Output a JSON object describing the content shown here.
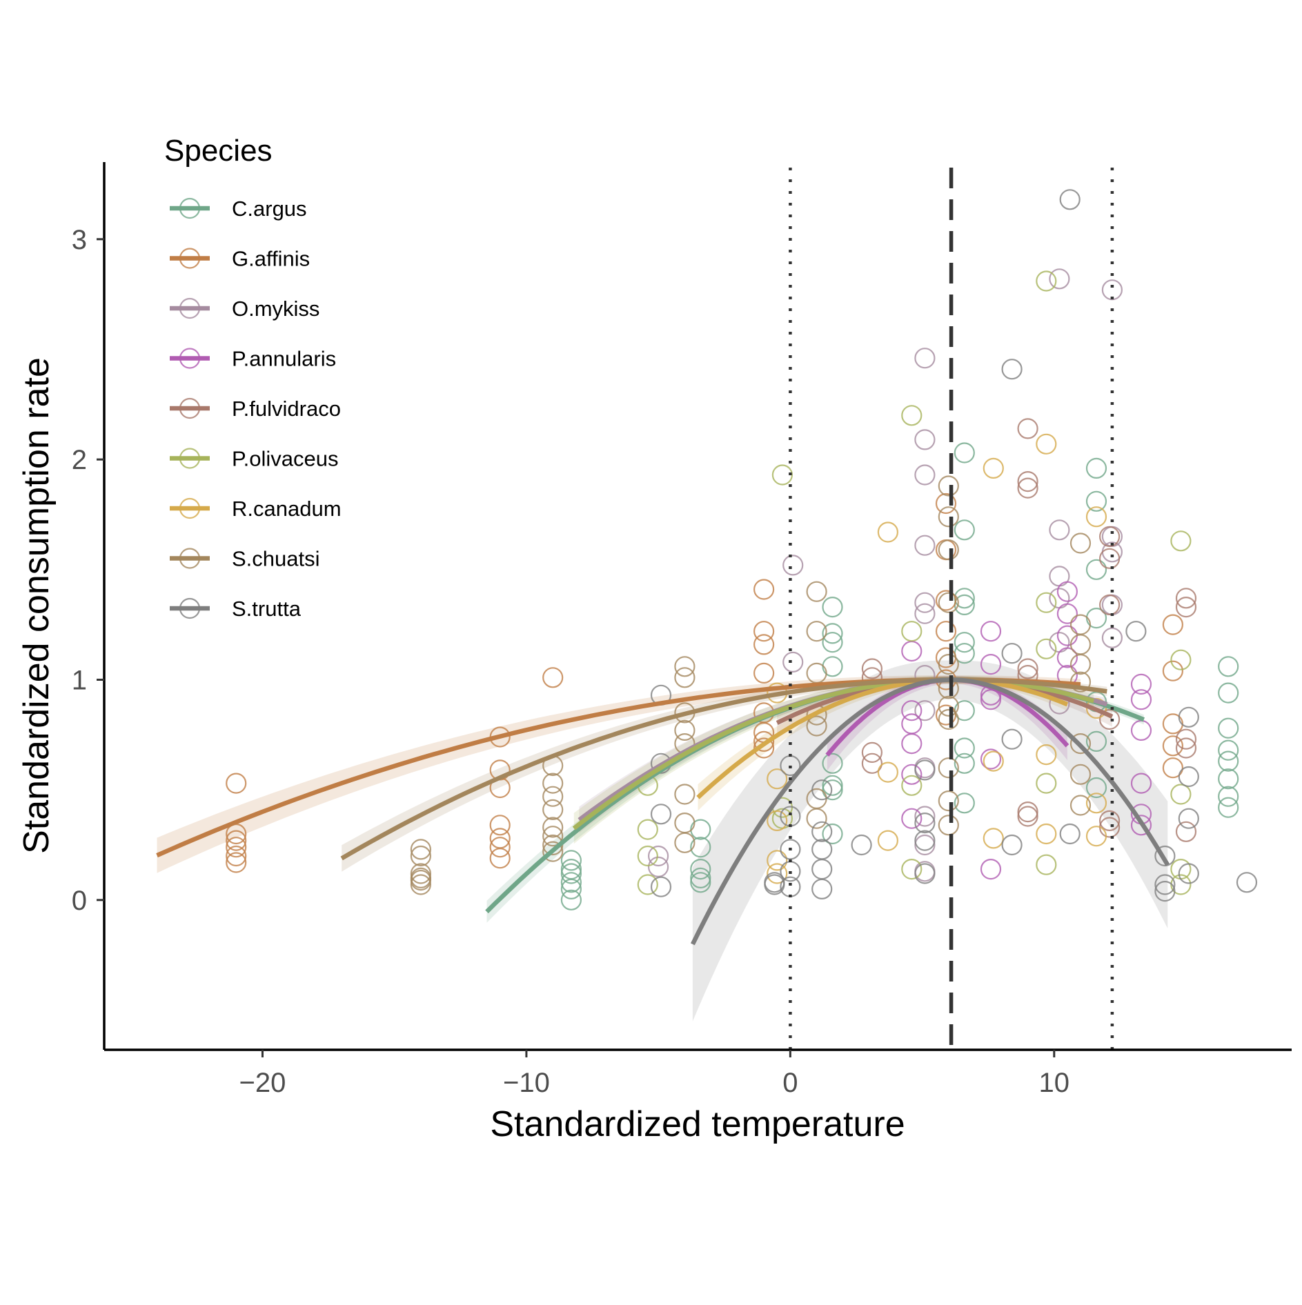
{
  "chart_data": {
    "type": "scatter",
    "xlabel": "Standardized temperature",
    "ylabel": "Standardized consumption rate",
    "xlim": [
      -26,
      19
    ],
    "ylim": [
      -0.68,
      3.35
    ],
    "x_ticks": [
      -20,
      -10,
      0,
      10
    ],
    "x_tick_labels": [
      "−20",
      "−10",
      "0",
      "10"
    ],
    "y_ticks": [
      0,
      1,
      2,
      3
    ],
    "y_tick_labels": [
      "0",
      "1",
      "2",
      "3"
    ],
    "grid": false,
    "legend_title": "Species",
    "legend_placement": "top-left",
    "reference_lines": [
      {
        "x": 0,
        "style": "dotted",
        "color": "#333333"
      },
      {
        "x": 6.1,
        "style": "dashed",
        "color": "#333333"
      },
      {
        "x": 12.2,
        "style": "dotted",
        "color": "#333333"
      }
    ],
    "series": [
      {
        "name": "C.argus",
        "color": "#6fa688",
        "curve": {
          "peak_x": 6.1,
          "peak_y": 1.0,
          "a": 0.0034,
          "x_range": [
            -11.5,
            13.4
          ],
          "ci": 0.05
        },
        "points": [
          [
            -8.3,
            0.0
          ],
          [
            -8.3,
            0.05
          ],
          [
            -8.3,
            0.08
          ],
          [
            -8.3,
            0.12
          ],
          [
            -8.3,
            0.14
          ],
          [
            -8.3,
            0.18
          ],
          [
            -3.4,
            0.08
          ],
          [
            -3.4,
            0.1
          ],
          [
            -3.4,
            0.14
          ],
          [
            -3.4,
            0.24
          ],
          [
            -3.4,
            0.32
          ],
          [
            1.6,
            0.5
          ],
          [
            1.6,
            0.52
          ],
          [
            1.6,
            0.62
          ],
          [
            1.6,
            1.06
          ],
          [
            1.6,
            1.17
          ],
          [
            1.6,
            1.21
          ],
          [
            1.6,
            1.33
          ],
          [
            1.6,
            0.3
          ],
          [
            6.6,
            0.44
          ],
          [
            6.6,
            0.62
          ],
          [
            6.6,
            0.69
          ],
          [
            6.6,
            0.86
          ],
          [
            6.6,
            1.12
          ],
          [
            6.6,
            1.17
          ],
          [
            6.6,
            1.34
          ],
          [
            6.6,
            1.37
          ],
          [
            6.6,
            1.68
          ],
          [
            6.6,
            2.03
          ],
          [
            11.6,
            0.51
          ],
          [
            11.6,
            0.72
          ],
          [
            11.6,
            0.9
          ],
          [
            11.6,
            1.28
          ],
          [
            11.6,
            1.5
          ],
          [
            11.6,
            1.81
          ],
          [
            11.6,
            1.96
          ],
          [
            16.6,
            0.42
          ],
          [
            16.6,
            0.47
          ],
          [
            16.6,
            0.55
          ],
          [
            16.6,
            0.63
          ],
          [
            16.6,
            0.68
          ],
          [
            16.6,
            0.78
          ],
          [
            16.6,
            0.94
          ],
          [
            16.6,
            1.06
          ]
        ]
      },
      {
        "name": "G.affinis",
        "color": "#c07d45",
        "curve": {
          "peak_x": 6.1,
          "peak_y": 1.0,
          "a": 0.00088,
          "x_range": [
            -24,
            11
          ],
          "ci": 0.08
        },
        "points": [
          [
            -21,
            0.17
          ],
          [
            -21,
            0.2
          ],
          [
            -21,
            0.24
          ],
          [
            -21,
            0.27
          ],
          [
            -21,
            0.3
          ],
          [
            -21,
            0.53
          ],
          [
            -11,
            0.19
          ],
          [
            -11,
            0.24
          ],
          [
            -11,
            0.28
          ],
          [
            -11,
            0.34
          ],
          [
            -11,
            0.51
          ],
          [
            -11,
            0.59
          ],
          [
            -11,
            0.74
          ],
          [
            -9,
            1.01
          ],
          [
            -1,
            0.69
          ],
          [
            -1,
            0.72
          ],
          [
            -1,
            0.76
          ],
          [
            -1,
            0.85
          ],
          [
            -1,
            1.03
          ],
          [
            -1,
            1.16
          ],
          [
            -1,
            1.22
          ],
          [
            -1,
            1.41
          ],
          [
            5.9,
            0.84
          ],
          [
            5.9,
            1.0
          ],
          [
            5.9,
            1.1
          ],
          [
            5.9,
            1.22
          ],
          [
            5.9,
            1.36
          ],
          [
            5.9,
            1.59
          ],
          [
            5.9,
            1.8
          ],
          [
            14.5,
            0.6
          ],
          [
            14.5,
            0.7
          ],
          [
            14.5,
            0.8
          ],
          [
            14.5,
            1.04
          ],
          [
            14.5,
            1.25
          ]
        ]
      },
      {
        "name": "O.mykiss",
        "color": "#a58b9f",
        "curve": {
          "peak_x": 6.1,
          "peak_y": 1.0,
          "a": 0.0032,
          "x_range": [
            -8,
            12
          ],
          "ci": 0.06
        },
        "points": [
          [
            0.1,
            1.52
          ],
          [
            0.1,
            1.08
          ],
          [
            5.1,
            0.13
          ],
          [
            5.1,
            0.25
          ],
          [
            5.1,
            0.38
          ],
          [
            5.1,
            0.6
          ],
          [
            5.1,
            0.86
          ],
          [
            5.1,
            1.02
          ],
          [
            5.1,
            1.3
          ],
          [
            5.1,
            1.35
          ],
          [
            5.1,
            1.61
          ],
          [
            5.1,
            1.93
          ],
          [
            5.1,
            2.09
          ],
          [
            5.1,
            2.46
          ],
          [
            10.2,
            0.89
          ],
          [
            10.2,
            1.17
          ],
          [
            10.2,
            1.37
          ],
          [
            10.2,
            1.47
          ],
          [
            10.2,
            1.68
          ],
          [
            10.2,
            2.82
          ],
          [
            12.2,
            1.19
          ],
          [
            12.2,
            1.34
          ],
          [
            12.2,
            1.58
          ],
          [
            12.2,
            1.65
          ],
          [
            12.2,
            2.77
          ],
          [
            -5,
            0.15
          ],
          [
            -5,
            0.2
          ]
        ]
      },
      {
        "name": "P.annularis",
        "color": "#b05bb1",
        "curve": {
          "peak_x": 6.1,
          "peak_y": 1.0,
          "a": 0.0155,
          "x_range": [
            1.4,
            10.5
          ],
          "ci": 0.07
        },
        "points": [
          [
            4.6,
            0.37
          ],
          [
            4.6,
            0.57
          ],
          [
            4.6,
            0.71
          ],
          [
            4.6,
            0.8
          ],
          [
            4.6,
            0.86
          ],
          [
            4.6,
            1.13
          ],
          [
            7.6,
            0.14
          ],
          [
            7.6,
            0.64
          ],
          [
            7.6,
            0.91
          ],
          [
            7.6,
            0.93
          ],
          [
            7.6,
            1.07
          ],
          [
            7.6,
            1.22
          ],
          [
            10.5,
            1.02
          ],
          [
            10.5,
            1.1
          ],
          [
            10.5,
            1.2
          ],
          [
            10.5,
            1.3
          ],
          [
            10.5,
            1.4
          ],
          [
            13.3,
            0.34
          ],
          [
            13.3,
            0.39
          ],
          [
            13.3,
            0.53
          ],
          [
            13.3,
            0.77
          ],
          [
            13.3,
            0.91
          ],
          [
            13.3,
            0.98
          ]
        ]
      },
      {
        "name": "P.fulvidraco",
        "color": "#a8786a",
        "curve": {
          "peak_x": 6.1,
          "peak_y": 1.0,
          "a": 0.0045,
          "x_range": [
            -0.5,
            12.2
          ],
          "ci": 0.05
        },
        "points": [
          [
            3.1,
            0.62
          ],
          [
            3.1,
            0.67
          ],
          [
            3.1,
            1.01
          ],
          [
            3.1,
            1.05
          ],
          [
            9.0,
            0.38
          ],
          [
            9.0,
            0.4
          ],
          [
            9.0,
            1.02
          ],
          [
            9.0,
            1.05
          ],
          [
            9.0,
            1.87
          ],
          [
            9.0,
            1.9
          ],
          [
            9.0,
            2.14
          ],
          [
            12.1,
            0.33
          ],
          [
            12.1,
            0.36
          ],
          [
            12.1,
            0.82
          ],
          [
            12.1,
            1.34
          ],
          [
            12.1,
            1.55
          ],
          [
            12.1,
            1.65
          ],
          [
            15.0,
            0.31
          ],
          [
            15.0,
            0.69
          ],
          [
            15.0,
            0.73
          ],
          [
            15.0,
            1.33
          ],
          [
            15.0,
            1.37
          ]
        ]
      },
      {
        "name": "P.olivaceus",
        "color": "#a6b35a",
        "curve": {
          "peak_x": 6.1,
          "peak_y": 1.0,
          "a": 0.0033,
          "x_range": [
            -8.2,
            11.5
          ],
          "ci": 0.07
        },
        "points": [
          [
            -5.4,
            0.07
          ],
          [
            -5.4,
            0.2
          ],
          [
            -5.4,
            0.32
          ],
          [
            -5.4,
            0.52
          ],
          [
            -0.3,
            1.93
          ],
          [
            -0.3,
            0.37
          ],
          [
            -0.3,
            0.42
          ],
          [
            4.6,
            0.14
          ],
          [
            4.6,
            0.52
          ],
          [
            4.6,
            1.22
          ],
          [
            4.6,
            2.2
          ],
          [
            9.7,
            0.16
          ],
          [
            9.7,
            0.53
          ],
          [
            9.7,
            1.14
          ],
          [
            9.7,
            1.35
          ],
          [
            9.7,
            2.81
          ],
          [
            14.8,
            0.07
          ],
          [
            14.8,
            0.14
          ],
          [
            14.8,
            0.48
          ],
          [
            14.8,
            1.09
          ],
          [
            14.8,
            1.63
          ]
        ]
      },
      {
        "name": "R.canadum",
        "color": "#d5a94a",
        "curve": {
          "peak_x": 6.1,
          "peak_y": 1.0,
          "a": 0.0058,
          "x_range": [
            -3.5,
            10.5
          ],
          "ci": 0.06
        },
        "points": [
          [
            -0.5,
            0.12
          ],
          [
            -0.5,
            0.18
          ],
          [
            -0.5,
            0.36
          ],
          [
            -0.5,
            0.55
          ],
          [
            -0.5,
            0.94
          ],
          [
            3.7,
            0.27
          ],
          [
            3.7,
            0.58
          ],
          [
            3.7,
            1.67
          ],
          [
            7.7,
            0.28
          ],
          [
            7.7,
            0.63
          ],
          [
            7.7,
            1.96
          ],
          [
            9.7,
            0.3
          ],
          [
            9.7,
            0.66
          ],
          [
            9.7,
            2.07
          ],
          [
            11.6,
            0.29
          ],
          [
            11.6,
            0.44
          ],
          [
            11.6,
            0.87
          ],
          [
            11.6,
            1.74
          ]
        ]
      },
      {
        "name": "S.chuatsi",
        "color": "#a3865c",
        "curve": {
          "peak_x": 6.1,
          "peak_y": 1.0,
          "a": 0.00152,
          "x_range": [
            -17,
            12
          ],
          "ci": 0.06
        },
        "points": [
          [
            -14,
            0.07
          ],
          [
            -14,
            0.09
          ],
          [
            -14,
            0.1
          ],
          [
            -14,
            0.12
          ],
          [
            -14,
            0.2
          ],
          [
            -14,
            0.23
          ],
          [
            -9,
            0.22
          ],
          [
            -9,
            0.25
          ],
          [
            -9,
            0.29
          ],
          [
            -9,
            0.33
          ],
          [
            -9,
            0.41
          ],
          [
            -9,
            0.47
          ],
          [
            -9,
            0.53
          ],
          [
            -9,
            0.61
          ],
          [
            -4,
            0.26
          ],
          [
            -4,
            0.35
          ],
          [
            -4,
            0.48
          ],
          [
            -4,
            0.71
          ],
          [
            -4,
            0.77
          ],
          [
            -4,
            0.85
          ],
          [
            -4,
            1.01
          ],
          [
            -4,
            1.06
          ],
          [
            1,
            0.37
          ],
          [
            1,
            0.46
          ],
          [
            1,
            0.79
          ],
          [
            1,
            0.84
          ],
          [
            1,
            1.03
          ],
          [
            1,
            1.22
          ],
          [
            1,
            1.4
          ],
          [
            6,
            0.34
          ],
          [
            6,
            0.45
          ],
          [
            6,
            0.6
          ],
          [
            6,
            0.82
          ],
          [
            6,
            0.88
          ],
          [
            6,
            0.96
          ],
          [
            6,
            1.07
          ],
          [
            6,
            1.35
          ],
          [
            6,
            1.59
          ],
          [
            6,
            1.74
          ],
          [
            6,
            1.88
          ],
          [
            11,
            0.43
          ],
          [
            11,
            0.57
          ],
          [
            11,
            0.71
          ],
          [
            11,
            0.99
          ],
          [
            11,
            1.07
          ],
          [
            11,
            1.16
          ],
          [
            11,
            1.25
          ],
          [
            11,
            1.62
          ]
        ]
      },
      {
        "name": "S.trutta",
        "color": "#7e7e7e",
        "curve": {
          "peak_x": 6.1,
          "peak_y": 1.0,
          "a": 0.0125,
          "x_range": [
            -3.7,
            14.3
          ],
          "ci": 0.35
        },
        "points": [
          [
            -0.6,
            0.07
          ],
          [
            -0.6,
            0.08
          ],
          [
            0,
            0.06
          ],
          [
            0,
            0.13
          ],
          [
            0,
            0.23
          ],
          [
            0,
            0.38
          ],
          [
            0,
            0.61
          ],
          [
            1.2,
            0.05
          ],
          [
            1.2,
            0.14
          ],
          [
            1.2,
            0.23
          ],
          [
            1.2,
            0.31
          ],
          [
            1.2,
            0.5
          ],
          [
            2.7,
            0.25
          ],
          [
            5.1,
            0.12
          ],
          [
            5.1,
            0.27
          ],
          [
            5.1,
            0.35
          ],
          [
            5.1,
            0.59
          ],
          [
            8.4,
            0.25
          ],
          [
            8.4,
            0.73
          ],
          [
            8.4,
            1.12
          ],
          [
            8.4,
            2.41
          ],
          [
            10.6,
            0.3
          ],
          [
            10.6,
            3.18
          ],
          [
            13.1,
            1.22
          ],
          [
            14.2,
            0.04
          ],
          [
            14.2,
            0.07
          ],
          [
            14.2,
            0.2
          ],
          [
            15.1,
            0.12
          ],
          [
            15.1,
            0.37
          ],
          [
            15.1,
            0.56
          ],
          [
            15.1,
            0.83
          ],
          [
            17.3,
            0.08
          ],
          [
            -4.9,
            0.06
          ],
          [
            -4.9,
            0.39
          ],
          [
            -4.9,
            0.62
          ],
          [
            -4.9,
            0.93
          ]
        ]
      }
    ]
  }
}
